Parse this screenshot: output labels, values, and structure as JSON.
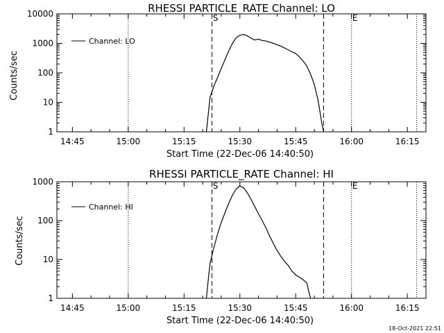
{
  "timestamp": "18-Oct-2021 22:51",
  "chart_data": [
    {
      "type": "line",
      "title": "RHESSI PARTICLE_RATE Channel: LO",
      "xlabel": "Start Time (22-Dec-06 14:40:50)",
      "ylabel": "Counts/sec",
      "y_scale": "log",
      "ylim": [
        1,
        10000
      ],
      "xlim": [
        "14:40:50",
        "16:20:00"
      ],
      "x_ticks": [
        "14:45",
        "15:00",
        "15:15",
        "15:30",
        "15:45",
        "16:00",
        "16:15"
      ],
      "y_ticks": [
        "1",
        "10",
        "100",
        "1000",
        "10000"
      ],
      "legend_position": "top-left",
      "markers": [
        {
          "label": "S",
          "time": "15:22:30",
          "style": "dashed"
        },
        {
          "label": "E",
          "time": "16:00:00",
          "style": "dotted"
        }
      ],
      "vlines": [
        {
          "time": "15:00:00",
          "style": "dotted"
        },
        {
          "time": "15:22:30",
          "style": "dashed"
        },
        {
          "time": "15:52:30",
          "style": "dashed"
        },
        {
          "time": "16:00:00",
          "style": "dotted"
        },
        {
          "time": "16:17:30",
          "style": "dotted"
        }
      ],
      "series": [
        {
          "name": "Channel: LO",
          "x": [
            "15:21:00",
            "15:21:30",
            "15:22:00",
            "15:23:00",
            "15:24:00",
            "15:25:00",
            "15:26:00",
            "15:27:00",
            "15:28:00",
            "15:29:00",
            "15:30:00",
            "15:31:00",
            "15:32:00",
            "15:33:00",
            "15:34:00",
            "15:35:00",
            "15:36:00",
            "15:37:00",
            "15:38:00",
            "15:39:00",
            "15:40:00",
            "15:41:00",
            "15:42:00",
            "15:43:00",
            "15:44:00",
            "15:45:00",
            "15:46:00",
            "15:47:00",
            "15:48:00",
            "15:49:00",
            "15:50:00",
            "15:51:00",
            "15:51:30",
            "15:52:00",
            "15:52:30"
          ],
          "values": [
            1,
            4,
            15,
            35,
            70,
            140,
            280,
            550,
            1000,
            1550,
            1900,
            2000,
            1800,
            1500,
            1300,
            1400,
            1250,
            1200,
            1100,
            1000,
            900,
            800,
            700,
            600,
            520,
            450,
            350,
            250,
            170,
            90,
            40,
            12,
            5,
            2,
            1
          ]
        }
      ]
    },
    {
      "type": "line",
      "title": "RHESSI PARTICLE_RATE Channel: HI",
      "xlabel": "Start Time (22-Dec-06 14:40:50)",
      "ylabel": "Counts/sec",
      "y_scale": "log",
      "ylim": [
        1,
        1000
      ],
      "xlim": [
        "14:40:50",
        "16:20:00"
      ],
      "x_ticks": [
        "14:45",
        "15:00",
        "15:15",
        "15:30",
        "15:45",
        "16:00",
        "16:15"
      ],
      "y_ticks": [
        "1",
        "10",
        "100",
        "1000"
      ],
      "legend_position": "top-left",
      "markers": [
        {
          "label": "S",
          "time": "15:22:30",
          "style": "dashed"
        },
        {
          "label": "E",
          "time": "16:00:00",
          "style": "dotted"
        }
      ],
      "vlines": [
        {
          "time": "15:00:00",
          "style": "dotted"
        },
        {
          "time": "15:22:30",
          "style": "dashed"
        },
        {
          "time": "15:52:30",
          "style": "dashed"
        },
        {
          "time": "16:00:00",
          "style": "dotted"
        },
        {
          "time": "16:17:30",
          "style": "dotted"
        }
      ],
      "series": [
        {
          "name": "Channel: HI",
          "x": [
            "15:21:00",
            "15:21:30",
            "15:22:00",
            "15:23:00",
            "15:24:00",
            "15:25:00",
            "15:26:00",
            "15:27:00",
            "15:28:00",
            "15:29:00",
            "15:30:00",
            "15:31:00",
            "15:32:00",
            "15:33:00",
            "15:34:00",
            "15:35:00",
            "15:36:00",
            "15:37:00",
            "15:38:00",
            "15:39:00",
            "15:40:00",
            "15:41:00",
            "15:42:00",
            "15:43:00",
            "15:44:00",
            "15:45:00",
            "15:46:00",
            "15:47:00",
            "15:48:00",
            "15:48:30",
            "15:49:00"
          ],
          "values": [
            1,
            3,
            8,
            20,
            45,
            90,
            160,
            280,
            450,
            650,
            780,
            700,
            520,
            350,
            230,
            150,
            100,
            65,
            40,
            26,
            17,
            12,
            9,
            7,
            5,
            4,
            3.5,
            3,
            2.5,
            1.5,
            1
          ]
        }
      ]
    }
  ]
}
